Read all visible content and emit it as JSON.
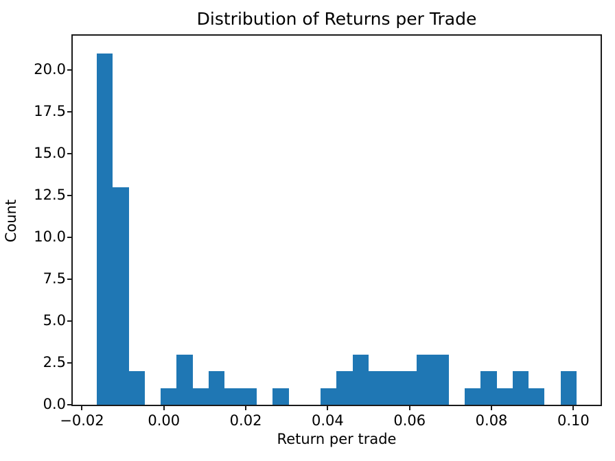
{
  "chart_data": {
    "type": "bar",
    "subtype": "histogram",
    "title": "Distribution of Returns per Trade",
    "xlabel": "Return per trade",
    "ylabel": "Count",
    "bar_color": "#1f77b4",
    "bin_start": -0.0164,
    "bin_width": 0.003906,
    "counts": [
      21,
      13,
      2,
      0,
      1,
      3,
      1,
      2,
      1,
      1,
      0,
      1,
      0,
      0,
      1,
      2,
      3,
      2,
      2,
      2,
      3,
      3,
      0,
      1,
      2,
      1,
      2,
      1,
      0,
      2
    ],
    "xlim": [
      -0.02225,
      0.10664
    ],
    "ylim": [
      0,
      22.05
    ],
    "xticks": [
      -0.02,
      0.0,
      0.02,
      0.04,
      0.06,
      0.08,
      0.1
    ],
    "xtick_labels": [
      "−0.02",
      "0.00",
      "0.02",
      "0.04",
      "0.06",
      "0.08",
      "0.10"
    ],
    "yticks": [
      0.0,
      2.5,
      5.0,
      7.5,
      10.0,
      12.5,
      15.0,
      17.5,
      20.0
    ],
    "ytick_labels": [
      "0.0",
      "2.5",
      "5.0",
      "7.5",
      "10.0",
      "12.5",
      "15.0",
      "17.5",
      "20.0"
    ],
    "grid": false,
    "legend": null
  }
}
